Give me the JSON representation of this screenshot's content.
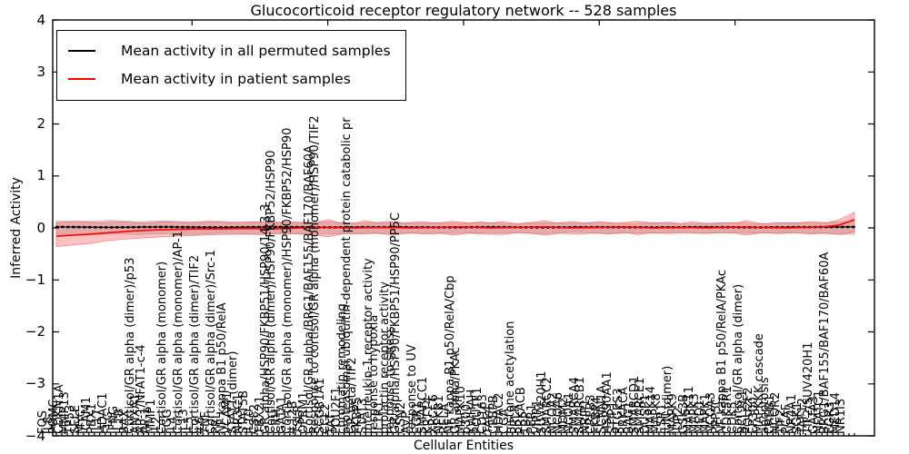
{
  "figure": {
    "title": "Glucocorticoid receptor regulatory network -- 528 samples",
    "xlabel": "Cellular Entities",
    "ylabel": "Inferred Activity",
    "legend": [
      {
        "label": "Mean activity in all permuted samples",
        "color": "#000000"
      },
      {
        "label": "Mean activity in patient samples",
        "color": "#ff0000"
      }
    ]
  },
  "chart_data": {
    "type": "line",
    "title": "Glucocorticoid receptor regulatory network -- 528 samples",
    "xlabel": "Cellular Entities",
    "ylabel": "Inferred Activity",
    "ylim": [
      -4,
      4
    ],
    "yticks": [
      "4",
      "3",
      "2",
      "1",
      "0",
      "−1",
      "−2",
      "−3",
      "−4"
    ],
    "ytick_values": [
      4,
      3,
      2,
      1,
      0,
      -1,
      -2,
      -3,
      -4
    ],
    "grid": false,
    "legend_position": "upper-left",
    "colors": {
      "permuted_line": "#000000",
      "patient_line": "#ff0000",
      "permuted_band": "#b0b0b0",
      "patient_band": "#ff4040"
    },
    "categories": [
      "FOS",
      "IL8",
      "POMC",
      "CDKN1A",
      "MMP13",
      "TP53",
      "SELE",
      "MYC",
      "ICAM1",
      "PBX1",
      "IL17",
      "HDAC1",
      "FLG",
      "IFNG",
      "IL1B",
      "BAX",
      "Cortisol/GR alpha (dimer)/p53",
      "ANXA1",
      "AP-1/NFAT1-c-4",
      "AP-1",
      "MMP1",
      "IL2",
      "Cortisol/GR alpha (monomer)",
      "FGG",
      "IL4",
      "Cortisol/GR alpha (monomer)/AP-1",
      "IL13",
      "IL5",
      "Cortisol/GR alpha (dimer)/TIF2",
      "IL6",
      "TNF",
      "Cortisol/GR alpha (dimer)/Src-1",
      "PRL",
      "NF kappa B1 p50/RelA",
      "VCAM1",
      "STAT1 (dimer)",
      "NR3C1",
      "STAT5B",
      "IL10",
      "CSF2",
      "TBX21",
      "GR alpha/HSP90/FKBP51/HSP90/14-3-3",
      "Cortisol/GR alpha (dimer)/HSP90/FKBP52/HSP90",
      "CRH",
      "GATA1",
      "Cortisol/GR alpha (monomer)/HSP90/FKBP52/HSP90",
      "IL12B",
      "TSLP",
      "OPRM1",
      "Cortisol/GR alpha/BRG1/BAF155/BAF170/BAF60A",
      "Response to cortisol/GR alpha (monomer)/HSP90/TIF2",
      "SCGB1A1",
      "CCL2",
      "TAT",
      "POU2F1",
      "chromatin remodeling",
      "proteasomal ubiquitin-dependent protein catabolic pr",
      "GR beta/TIF2",
      "FKBP5",
      "STAT3",
      "Interleukin-1 receptor activity",
      "response to hypoxia",
      "IL1R1",
      "prolactin receptor activity",
      "response to stress",
      "GR alpha/HSP90/FKBP51/HSP90/PP5C",
      "CSN2",
      "AVP",
      "response to UV",
      "EGR1",
      "SMARCC1",
      "KRT14",
      "XRCC6",
      "NFKB1",
      "RELA",
      "NF kappa B1 p50/RelA/Cbp",
      "GR alpha/PKAc",
      "MAPK10",
      "p300",
      "YWHAH",
      "POU1F1",
      "CD163",
      "TAF4",
      "CEBPB",
      "HDAC2",
      "CGA",
      "histone acetylation",
      "PRLR",
      "PRKACB",
      "TBP",
      "PER1",
      "VIPR1",
      "SUV420H1",
      "SMARCC2",
      "NCOA2",
      "NCOA6",
      "MDM2",
      "NCOA1",
      "SMARCA4",
      "SMARCB1",
      "NRIP1",
      "CREB3",
      "FKBP4",
      "SCNN1A",
      "HSP90AA1",
      "STIP1",
      "PTGES3",
      "PRKACA",
      "BAG1",
      "SMARCD1",
      "SMARCE1",
      "DUSP1",
      "MAPK14",
      "MAPK8",
      "ESR1",
      "JUN (dimer)",
      "MAPK9",
      "JDP2",
      "GSK3B",
      "MAPK11",
      "MAPK3",
      "MED1",
      "MAPK1",
      "NCOA3",
      "PPP5C",
      "NF kappa B1 p50/RelA/PKAc",
      "CDK5R1",
      "CDK5",
      "Cortisol/GR alpha (dimer)",
      "BCL2L1",
      "POU2F2",
      "EP300",
      "MAPKKK cascade",
      "apoptosis",
      "CREB1",
      "NCOR2",
      "TIF2",
      "PCAF",
      "NR4A1",
      "SGK1",
      "TAF12",
      "TIF2/SUV420H1",
      "GATA3",
      "NFATC1",
      "BRG1/BAF155/BAF170/BAF60A",
      "EGR3",
      "MED14",
      "NR1I3"
    ],
    "series": [
      {
        "name": "Mean activity in all permuted samples",
        "color": "#000000",
        "points": [
          [
            0,
            0.02
          ],
          [
            10,
            0.01
          ],
          [
            20,
            0.02
          ],
          [
            30,
            0.01
          ],
          [
            40,
            0.02
          ],
          [
            50,
            0.01
          ],
          [
            60,
            0.015
          ],
          [
            70,
            0.01
          ],
          [
            80,
            0.015
          ],
          [
            90,
            0.01
          ],
          [
            100,
            0.015
          ],
          [
            110,
            0.01
          ],
          [
            120,
            0.015
          ],
          [
            130,
            0.01
          ],
          [
            140,
            0.015
          ],
          [
            147,
            0.02
          ]
        ]
      },
      {
        "name": "Mean activity in patient samples",
        "color": "#ff0000",
        "points": [
          [
            0,
            -0.16
          ],
          [
            3,
            -0.14
          ],
          [
            6,
            -0.12
          ],
          [
            10,
            -0.09
          ],
          [
            14,
            -0.06
          ],
          [
            18,
            -0.04
          ],
          [
            22,
            -0.03
          ],
          [
            26,
            -0.02
          ],
          [
            30,
            -0.02
          ],
          [
            35,
            -0.01
          ],
          [
            40,
            -0.02
          ],
          [
            45,
            0
          ],
          [
            50,
            0.01
          ],
          [
            55,
            0
          ],
          [
            60,
            0.01
          ],
          [
            65,
            0
          ],
          [
            70,
            0.01
          ],
          [
            75,
            0.02
          ],
          [
            80,
            0
          ],
          [
            85,
            0.01
          ],
          [
            90,
            0.02
          ],
          [
            95,
            0
          ],
          [
            100,
            0.01
          ],
          [
            105,
            0.02
          ],
          [
            110,
            0
          ],
          [
            115,
            0.01
          ],
          [
            120,
            0
          ],
          [
            125,
            0.02
          ],
          [
            130,
            0.01
          ],
          [
            135,
            0
          ],
          [
            138,
            0.01
          ],
          [
            141,
            0.02
          ],
          [
            144,
            0.05
          ],
          [
            146,
            0.12
          ],
          [
            147,
            0.16
          ]
        ]
      }
    ],
    "bands": [
      {
        "name": "permuted samples std band",
        "color": "#b0b0b0",
        "opacity": 0.45,
        "upper": [
          [
            0,
            0.14
          ],
          [
            5,
            0.12
          ],
          [
            10,
            0.15
          ],
          [
            15,
            0.12
          ],
          [
            20,
            0.14
          ],
          [
            25,
            0.11
          ],
          [
            30,
            0.13
          ],
          [
            35,
            0.1
          ],
          [
            40,
            0.12
          ],
          [
            45,
            0.1
          ],
          [
            50,
            0.12
          ],
          [
            55,
            0.09
          ],
          [
            60,
            0.11
          ],
          [
            65,
            0.09
          ],
          [
            70,
            0.1
          ],
          [
            75,
            0.09
          ],
          [
            80,
            0.1
          ],
          [
            85,
            0.08
          ],
          [
            90,
            0.1
          ],
          [
            95,
            0.09
          ],
          [
            100,
            0.1
          ],
          [
            105,
            0.08
          ],
          [
            110,
            0.1
          ],
          [
            115,
            0.08
          ],
          [
            120,
            0.09
          ],
          [
            125,
            0.1
          ],
          [
            130,
            0.08
          ],
          [
            135,
            0.1
          ],
          [
            140,
            0.09
          ],
          [
            144,
            0.12
          ],
          [
            147,
            0.13
          ]
        ],
        "lower": [
          [
            0,
            -0.12
          ],
          [
            5,
            -0.14
          ],
          [
            10,
            -0.11
          ],
          [
            15,
            -0.13
          ],
          [
            20,
            -0.11
          ],
          [
            25,
            -0.13
          ],
          [
            30,
            -0.1
          ],
          [
            35,
            -0.12
          ],
          [
            40,
            -0.1
          ],
          [
            45,
            -0.11
          ],
          [
            50,
            -0.12
          ],
          [
            55,
            -0.1
          ],
          [
            60,
            -0.11
          ],
          [
            65,
            -0.09
          ],
          [
            70,
            -0.11
          ],
          [
            75,
            -0.09
          ],
          [
            80,
            -0.1
          ],
          [
            85,
            -0.09
          ],
          [
            90,
            -0.11
          ],
          [
            95,
            -0.08
          ],
          [
            100,
            -0.1
          ],
          [
            105,
            -0.09
          ],
          [
            110,
            -0.1
          ],
          [
            115,
            -0.08
          ],
          [
            120,
            -0.1
          ],
          [
            125,
            -0.09
          ],
          [
            130,
            -0.1
          ],
          [
            135,
            -0.09
          ],
          [
            140,
            -0.1
          ],
          [
            144,
            -0.12
          ],
          [
            147,
            -0.13
          ]
        ]
      },
      {
        "name": "patient samples std band",
        "color": "#ff4040",
        "opacity": 0.32,
        "upper": [
          [
            0,
            0.1
          ],
          [
            4,
            0.13
          ],
          [
            8,
            0.1
          ],
          [
            12,
            0.12
          ],
          [
            16,
            0.09
          ],
          [
            20,
            0.12
          ],
          [
            24,
            0.1
          ],
          [
            28,
            0.13
          ],
          [
            32,
            0.1
          ],
          [
            36,
            0.12
          ],
          [
            40,
            0.1
          ],
          [
            44,
            0.11
          ],
          [
            48,
            0.1
          ],
          [
            50,
            0.16
          ],
          [
            52,
            0.1
          ],
          [
            55,
            0.09
          ],
          [
            57,
            0.14
          ],
          [
            59,
            0.09
          ],
          [
            62,
            0.13
          ],
          [
            64,
            0.09
          ],
          [
            67,
            0.12
          ],
          [
            70,
            0.09
          ],
          [
            73,
            0.13
          ],
          [
            76,
            0.09
          ],
          [
            78,
            0.12
          ],
          [
            80,
            0.09
          ],
          [
            82,
            0.12
          ],
          [
            85,
            0.08
          ],
          [
            88,
            0.11
          ],
          [
            90,
            0.14
          ],
          [
            92,
            0.09
          ],
          [
            95,
            0.12
          ],
          [
            97,
            0.09
          ],
          [
            100,
            0.12
          ],
          [
            103,
            0.09
          ],
          [
            107,
            0.13
          ],
          [
            110,
            0.09
          ],
          [
            113,
            0.11
          ],
          [
            115,
            0.08
          ],
          [
            117,
            0.12
          ],
          [
            120,
            0.08
          ],
          [
            123,
            0.1
          ],
          [
            125,
            0.09
          ],
          [
            127,
            0.14
          ],
          [
            130,
            0.08
          ],
          [
            133,
            0.1
          ],
          [
            136,
            0.09
          ],
          [
            139,
            0.12
          ],
          [
            142,
            0.1
          ],
          [
            144,
            0.15
          ],
          [
            146,
            0.25
          ],
          [
            147,
            0.3
          ]
        ],
        "lower": [
          [
            0,
            -0.36
          ],
          [
            3,
            -0.33
          ],
          [
            6,
            -0.3
          ],
          [
            9,
            -0.25
          ],
          [
            12,
            -0.22
          ],
          [
            15,
            -0.2
          ],
          [
            18,
            -0.18
          ],
          [
            21,
            -0.16
          ],
          [
            24,
            -0.15
          ],
          [
            27,
            -0.14
          ],
          [
            30,
            -0.13
          ],
          [
            34,
            -0.12
          ],
          [
            38,
            -0.13
          ],
          [
            42,
            -0.11
          ],
          [
            46,
            -0.12
          ],
          [
            50,
            -0.17
          ],
          [
            53,
            -0.11
          ],
          [
            56,
            -0.12
          ],
          [
            59,
            -0.1
          ],
          [
            62,
            -0.14
          ],
          [
            65,
            -0.1
          ],
          [
            68,
            -0.12
          ],
          [
            71,
            -0.1
          ],
          [
            73,
            -0.14
          ],
          [
            76,
            -0.1
          ],
          [
            79,
            -0.12
          ],
          [
            82,
            -0.13
          ],
          [
            85,
            -0.09
          ],
          [
            88,
            -0.11
          ],
          [
            90,
            -0.14
          ],
          [
            93,
            -0.1
          ],
          [
            96,
            -0.12
          ],
          [
            99,
            -0.1
          ],
          [
            102,
            -0.12
          ],
          [
            105,
            -0.09
          ],
          [
            107,
            -0.13
          ],
          [
            110,
            -0.09
          ],
          [
            113,
            -0.11
          ],
          [
            116,
            -0.09
          ],
          [
            119,
            -0.11
          ],
          [
            122,
            -0.09
          ],
          [
            125,
            -0.1
          ],
          [
            127,
            -0.14
          ],
          [
            130,
            -0.09
          ],
          [
            133,
            -0.11
          ],
          [
            136,
            -0.09
          ],
          [
            139,
            -0.12
          ],
          [
            142,
            -0.1
          ],
          [
            144,
            -0.13
          ],
          [
            146,
            -0.1
          ],
          [
            147,
            -0.08
          ]
        ]
      }
    ]
  }
}
